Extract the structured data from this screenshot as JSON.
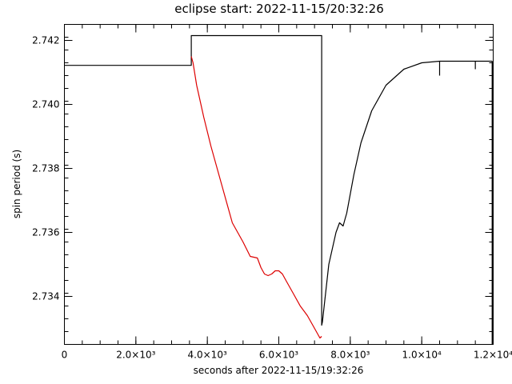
{
  "chart_data": {
    "type": "line",
    "title": "eclipse start: 2022-11-15/20:32:26",
    "xlabel": "seconds after 2022-11-15/19:32:26",
    "ylabel": "spin period (s)",
    "xlim": [
      0,
      12000
    ],
    "ylim": [
      2.7325,
      2.7425
    ],
    "x_ticks": [
      {
        "v": 0,
        "label": "0"
      },
      {
        "v": 2000,
        "label": "2.0×10³"
      },
      {
        "v": 4000,
        "label": "4.0×10³"
      },
      {
        "v": 6000,
        "label": "6.0×10³"
      },
      {
        "v": 8000,
        "label": "8.0×10³"
      },
      {
        "v": 10000,
        "label": "1.0×10⁴"
      },
      {
        "v": 12000,
        "label": "1.2×10⁴"
      }
    ],
    "y_ticks": [
      {
        "v": 2.734,
        "label": "2.734"
      },
      {
        "v": 2.736,
        "label": "2.736"
      },
      {
        "v": 2.738,
        "label": "2.738"
      },
      {
        "v": 2.74,
        "label": "2.740"
      },
      {
        "v": 2.742,
        "label": "2.742"
      }
    ],
    "grid": false,
    "series": [
      {
        "color": "#000000",
        "x": [
          0,
          3550,
          3550,
          3565,
          7200,
          7200,
          7220,
          7400,
          7600,
          7700,
          7800,
          7850,
          7900,
          8100,
          8300,
          8600,
          9000,
          9500,
          10000,
          10500,
          10800,
          11500,
          11970
        ],
        "y": [
          2.74122,
          2.74122,
          2.74215,
          2.74215,
          2.74215,
          2.7331,
          2.7332,
          2.735,
          2.736,
          2.7363,
          2.7362,
          2.7364,
          2.7366,
          2.7378,
          2.7388,
          2.7398,
          2.7406,
          2.7411,
          2.7413,
          2.74135,
          2.74135,
          2.74135,
          2.74135
        ]
      },
      {
        "color": "#dd0000",
        "x": [
          3550,
          3600,
          3700,
          3900,
          4100,
          4400,
          4700,
          5000,
          5200,
          5400,
          5500,
          5600,
          5700,
          5800,
          5900,
          6000,
          6100,
          6200,
          6400,
          6600,
          6800,
          7000,
          7150,
          7200
        ],
        "y": [
          2.7415,
          2.7413,
          2.7406,
          2.7396,
          2.7387,
          2.7375,
          2.7363,
          2.7357,
          2.73525,
          2.7352,
          2.7349,
          2.7347,
          2.73465,
          2.7347,
          2.7348,
          2.7348,
          2.7347,
          2.7345,
          2.7341,
          2.7337,
          2.7334,
          2.733,
          2.7327,
          2.73275
        ]
      }
    ],
    "spikes": [
      {
        "x": 10500,
        "y1": 2.74135,
        "y2": 2.7409
      },
      {
        "x": 11500,
        "y1": 2.74135,
        "y2": 2.7411
      },
      {
        "x": 11980,
        "y1": 2.74135,
        "y2": 2.7325
      }
    ]
  }
}
